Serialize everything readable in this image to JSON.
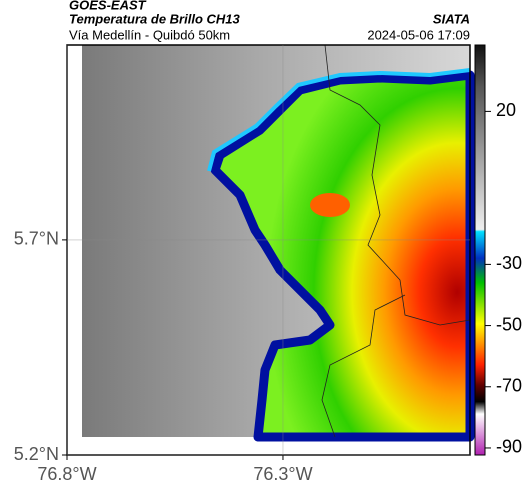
{
  "header": {
    "satellite": "GOES-EAST",
    "product": "Temperatura de Brillo CH13",
    "region": "Vía Medellín - Quibdó 50km",
    "source": "SIATA",
    "timestamp": "2024-05-06 17:09"
  },
  "map": {
    "xlim": [
      -76.8,
      -75.867
    ],
    "ylim": [
      5.2,
      6.153
    ],
    "xticks": [
      {
        "value": -76.8,
        "label": "76.8°W"
      },
      {
        "value": -76.3,
        "label": "76.3°W"
      }
    ],
    "yticks": [
      {
        "value": 5.2,
        "label": "5.2°N"
      },
      {
        "value": 5.7,
        "label": "5.7°N"
      }
    ],
    "grid": true
  },
  "colorbar": {
    "lim": [
      -92.3,
      41.7
    ],
    "ticks": [
      20,
      -30,
      -50,
      -70,
      -90
    ]
  }
}
